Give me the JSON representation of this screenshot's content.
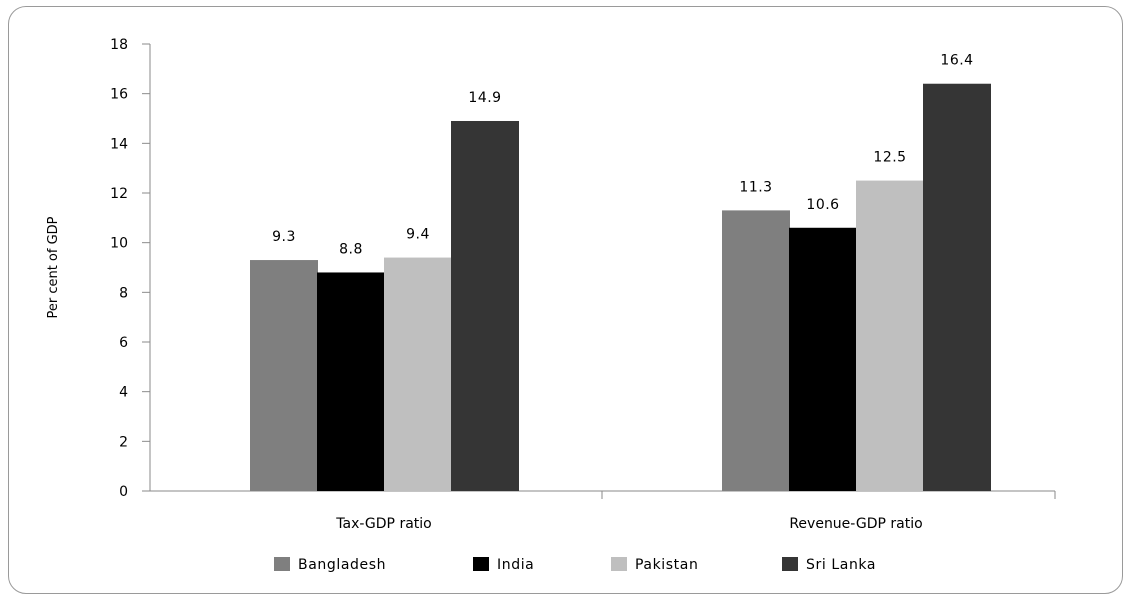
{
  "chart_data": {
    "type": "bar",
    "title": "",
    "xlabel": "",
    "ylabel": "Per cent of GDP",
    "ylim": [
      0,
      18
    ],
    "yticks": [
      0,
      2,
      4,
      6,
      8,
      10,
      12,
      14,
      16,
      18
    ],
    "categories": [
      "Tax-GDP ratio",
      "Revenue-GDP ratio"
    ],
    "series": [
      {
        "name": "Bangladesh",
        "values": [
          9.3,
          11.3
        ],
        "labels": [
          "9.3",
          "11.3"
        ],
        "color": "#7f7f7f"
      },
      {
        "name": "India",
        "values": [
          8.8,
          10.6
        ],
        "labels": [
          "8.8",
          "10.6"
        ],
        "color": "#000000"
      },
      {
        "name": "Pakistan",
        "values": [
          9.4,
          12.5
        ],
        "labels": [
          "9.4",
          "12.5"
        ],
        "color": "#bfbfbf"
      },
      {
        "name": "Sri Lanka",
        "values": [
          14.9,
          16.4
        ],
        "labels": [
          "14.9",
          "16.4"
        ],
        "color": "#353535"
      }
    ],
    "grid": false,
    "legend_position": "bottom"
  }
}
